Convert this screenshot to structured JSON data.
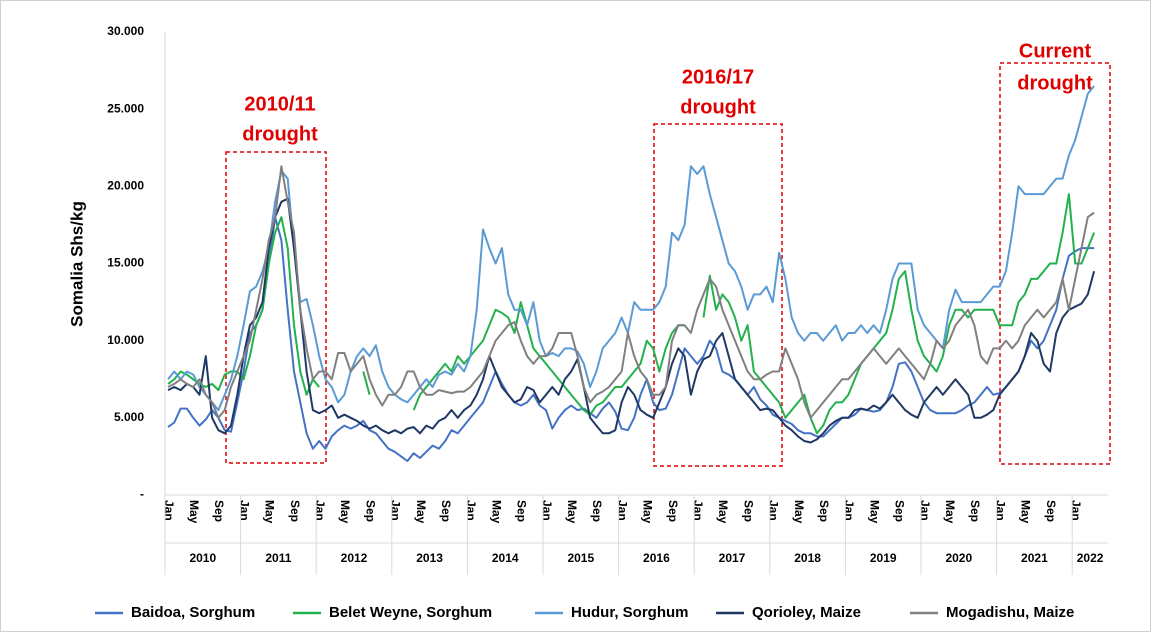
{
  "chart_data": {
    "type": "line",
    "y_label": "Somalia Shs/kg",
    "ylim": [
      0,
      30000
    ],
    "yticks": [
      {
        "value": 0,
        "label": "-"
      },
      {
        "value": 5000,
        "label": "5.000"
      },
      {
        "value": 10000,
        "label": "10.000"
      },
      {
        "value": 15000,
        "label": "15.000"
      },
      {
        "value": 20000,
        "label": "20.000"
      },
      {
        "value": 25000,
        "label": "25.000"
      },
      {
        "value": 30000,
        "label": "30.000"
      }
    ],
    "years": [
      "2010",
      "2011",
      "2012",
      "2013",
      "2014",
      "2015",
      "2016",
      "2017",
      "2018",
      "2019",
      "2020",
      "2021",
      "2022"
    ],
    "categories": [
      "Jan",
      null,
      null,
      null,
      "May",
      null,
      null,
      null,
      "Sep",
      null,
      null,
      null,
      "Jan",
      null,
      null,
      null,
      "May",
      null,
      null,
      null,
      "Sep",
      null,
      null,
      null,
      "Jan",
      null,
      null,
      null,
      "May",
      null,
      null,
      null,
      "Sep",
      null,
      null,
      null,
      "Jan",
      null,
      null,
      null,
      "May",
      null,
      null,
      null,
      "Sep",
      null,
      null,
      null,
      "Jan",
      null,
      null,
      null,
      "May",
      null,
      null,
      null,
      "Sep",
      null,
      null,
      null,
      "Jan",
      null,
      null,
      null,
      "May",
      null,
      null,
      null,
      "Sep",
      null,
      null,
      null,
      "Jan",
      null,
      null,
      null,
      "May",
      null,
      null,
      null,
      "Sep",
      null,
      null,
      null,
      "Jan",
      null,
      null,
      null,
      "May",
      null,
      null,
      null,
      "Sep",
      null,
      null,
      null,
      "Jan",
      null,
      null,
      null,
      "May",
      null,
      null,
      null,
      "Sep",
      null,
      null,
      null,
      "Jan",
      null,
      null,
      null,
      "May",
      null,
      null,
      null,
      "Sep",
      null,
      null,
      null,
      "Jan",
      null,
      null,
      null,
      "May",
      null,
      null,
      null,
      "Sep",
      null,
      null,
      null,
      "Jan",
      null,
      null,
      null,
      "May",
      null,
      null,
      null,
      "Sep",
      null,
      null,
      null,
      "Jan",
      null,
      null,
      null
    ],
    "annotations": [
      {
        "lines": [
          "2010/11",
          "drought"
        ]
      },
      {
        "lines": [
          "2016/17",
          "drought"
        ]
      },
      {
        "lines": [
          "Current",
          "drought"
        ]
      }
    ],
    "series": [
      {
        "name": "Baidoa, Sorghum",
        "color": "#4472c4",
        "values": [
          4400,
          4700,
          5600,
          5600,
          5000,
          4500,
          4900,
          5500,
          5000,
          4200,
          4100,
          6000,
          8000,
          10500,
          11000,
          12000,
          15000,
          18000,
          16500,
          12000,
          8000,
          6000,
          4000,
          3000,
          3500,
          3000,
          3800,
          4200,
          4500,
          4300,
          4500,
          4800,
          4200,
          4000,
          3500,
          3000,
          2800,
          2500,
          2200,
          2700,
          2400,
          2800,
          3200,
          3000,
          3500,
          4200,
          4000,
          4500,
          5000,
          5500,
          6000,
          7000,
          8000,
          7200,
          6500,
          6000,
          5800,
          6000,
          6500,
          5800,
          5500,
          4300,
          5000,
          5500,
          5800,
          5500,
          5600,
          5300,
          5000,
          5600,
          6000,
          5400,
          4300,
          4200,
          5000,
          6500,
          7500,
          6000,
          5500,
          5600,
          6500,
          8000,
          9500,
          9000,
          8500,
          9000,
          10000,
          9500,
          8000,
          7800,
          7500,
          7000,
          6500,
          7000,
          6200,
          5800,
          5200,
          5000,
          4800,
          4600,
          4200,
          4000,
          4000,
          3800,
          3800,
          4200,
          4600,
          5000,
          5000,
          5200,
          5600,
          5500,
          5400,
          5500,
          6000,
          7000,
          8500,
          8600,
          8000,
          7000,
          6000,
          5500,
          5300,
          5300,
          5300,
          5300,
          5500,
          5800,
          6000,
          6500,
          7000,
          6500,
          6600,
          7000,
          7500,
          8000,
          9000,
          10000,
          9500,
          10000,
          11000,
          12000,
          14000,
          15500,
          15800,
          16000,
          16000,
          16000
        ]
      },
      {
        "name": "Belet Weyne, Sorghum",
        "color": "#22b14c",
        "values": [
          7200,
          7500,
          8000,
          7800,
          7500,
          7200,
          7000,
          7200,
          6800,
          7800,
          8000,
          8000,
          7500,
          9000,
          11000,
          12000,
          15000,
          17000,
          18000,
          16000,
          11000,
          8000,
          6500,
          7500,
          7000,
          null,
          null,
          null,
          null,
          null,
          null,
          8000,
          6500,
          null,
          null,
          null,
          null,
          null,
          null,
          5500,
          6500,
          7000,
          7500,
          8000,
          8500,
          8000,
          9000,
          8500,
          9000,
          9500,
          10000,
          11000,
          12000,
          11800,
          11500,
          10500,
          12500,
          11000,
          9500,
          9000,
          8500,
          8000,
          7500,
          7000,
          6500,
          6000,
          5500,
          5200,
          5800,
          6000,
          6500,
          7000,
          7000,
          7500,
          8000,
          8500,
          10000,
          9500,
          8000,
          9500,
          10500,
          11000,
          11000,
          null,
          null,
          11500,
          14200,
          12000,
          13000,
          12500,
          11500,
          10000,
          11000,
          8000,
          7500,
          7000,
          6500,
          6000,
          5000,
          5500,
          6000,
          6500,
          5000,
          4000,
          4500,
          5500,
          6000,
          6000,
          6500,
          7500,
          8500,
          9000,
          9500,
          10000,
          10500,
          12000,
          14000,
          14500,
          12000,
          10000,
          9000,
          8500,
          8000,
          9000,
          11000,
          12000,
          12000,
          11500,
          12000,
          12000,
          12000,
          12000,
          11000,
          11000,
          11000,
          12500,
          13000,
          14000,
          14000,
          14500,
          15000,
          15000,
          17000,
          19500,
          15000,
          15000,
          16000,
          17000
        ]
      },
      {
        "name": "Hudur, Sorghum",
        "color": "#5b9bd5",
        "values": [
          7500,
          8000,
          7500,
          8000,
          7800,
          7000,
          6500,
          6000,
          5500,
          6500,
          7500,
          9000,
          11000,
          13200,
          13500,
          14500,
          16000,
          19000,
          21000,
          20500,
          16000,
          12500,
          12700,
          11000,
          9000,
          7500,
          7000,
          6000,
          6500,
          8000,
          9000,
          9500,
          9000,
          9700,
          8000,
          7000,
          6500,
          6200,
          6000,
          6500,
          7000,
          7500,
          7000,
          7800,
          8000,
          7800,
          8500,
          8000,
          9000,
          12000,
          17200,
          16000,
          15000,
          16000,
          13000,
          12000,
          12000,
          11000,
          12500,
          10000,
          9000,
          9200,
          9000,
          9500,
          9500,
          9300,
          8500,
          7000,
          8000,
          9500,
          10000,
          10500,
          11500,
          10500,
          12500,
          12000,
          12000,
          12000,
          12500,
          13500,
          17000,
          16500,
          17500,
          21300,
          20800,
          21300,
          19500,
          18000,
          16500,
          15000,
          14500,
          13500,
          12000,
          13000,
          13000,
          13500,
          12500,
          15700,
          14000,
          11500,
          10500,
          10000,
          10500,
          10500,
          10000,
          10500,
          11000,
          10000,
          10500,
          10500,
          11000,
          10500,
          11000,
          10500,
          12000,
          14000,
          15000,
          15000,
          15000,
          12000,
          11000,
          10500,
          10000,
          9500,
          12000,
          13300,
          12500,
          12500,
          12500,
          12500,
          13000,
          13500,
          13500,
          14500,
          17000,
          20000,
          19500,
          19500,
          19500,
          19500,
          20000,
          20500,
          20500,
          22000,
          23000,
          24500,
          26000,
          26500
        ]
      },
      {
        "name": "Qorioley, Maize",
        "color": "#203864",
        "values": [
          6800,
          7000,
          6800,
          7200,
          7000,
          6500,
          9000,
          5000,
          4200,
          4000,
          4500,
          6500,
          9000,
          11000,
          11500,
          12500,
          16000,
          18000,
          19000,
          19200,
          16000,
          12000,
          8000,
          5500,
          5300,
          5500,
          5800,
          5000,
          5200,
          5000,
          4800,
          4500,
          4300,
          4500,
          4200,
          4000,
          4200,
          4000,
          4300,
          4400,
          4000,
          4500,
          4300,
          4800,
          5000,
          5500,
          5000,
          5500,
          5800,
          6500,
          7500,
          9000,
          8000,
          7000,
          6500,
          6000,
          6200,
          7000,
          6800,
          6000,
          6500,
          7000,
          6500,
          7500,
          8000,
          8800,
          7000,
          5000,
          4500,
          4000,
          4000,
          4200,
          6000,
          7000,
          6500,
          5500,
          5200,
          5000,
          6000,
          7000,
          8500,
          9500,
          9000,
          6500,
          8000,
          8800,
          9000,
          10000,
          10500,
          9000,
          7500,
          7000,
          6500,
          6000,
          5500,
          5600,
          5500,
          5000,
          4500,
          4200,
          3800,
          3500,
          3400,
          3600,
          4000,
          4500,
          4800,
          5000,
          5000,
          5500,
          5600,
          5500,
          5800,
          5600,
          6000,
          6500,
          6000,
          5500,
          5200,
          5000,
          6000,
          6500,
          7000,
          6500,
          7000,
          7500,
          7000,
          6500,
          5000,
          5000,
          5200,
          5500,
          6500,
          7000,
          7500,
          8000,
          9000,
          10500,
          10000,
          8500,
          8000,
          10500,
          11500,
          12000,
          12200,
          12400,
          13000,
          14500
        ]
      },
      {
        "name": "Mogadishu, Maize",
        "color": "#808080",
        "values": [
          7000,
          7200,
          7500,
          7200,
          7000,
          7500,
          6500,
          6000,
          5000,
          5500,
          7000,
          8000,
          9000,
          10000,
          12000,
          14000,
          16500,
          18000,
          21300,
          19000,
          17000,
          12000,
          9500,
          7500,
          8000,
          8000,
          7500,
          9200,
          9200,
          8000,
          8500,
          9000,
          7500,
          6500,
          5800,
          6500,
          6500,
          7000,
          8000,
          8000,
          7000,
          6500,
          6500,
          6800,
          6700,
          6600,
          6700,
          6700,
          7000,
          7500,
          8000,
          9000,
          10000,
          10500,
          11000,
          11200,
          10000,
          9000,
          8500,
          9000,
          9000,
          9500,
          10500,
          10500,
          10500,
          9000,
          7000,
          6000,
          6500,
          6700,
          7000,
          7500,
          8000,
          10500,
          9000,
          8000,
          7500,
          6500,
          6500,
          7000,
          10000,
          11000,
          11000,
          10500,
          12000,
          13000,
          14000,
          13500,
          12000,
          11000,
          10000,
          9000,
          8000,
          7500,
          7500,
          7800,
          8000,
          8000,
          9500,
          8500,
          7500,
          6000,
          5000,
          5500,
          6000,
          6500,
          7000,
          7500,
          7500,
          8000,
          8500,
          9000,
          9500,
          9000,
          8500,
          9000,
          9500,
          9000,
          8500,
          8000,
          7500,
          8500,
          10000,
          9500,
          10000,
          11000,
          11500,
          12000,
          11000,
          9000,
          8500,
          9500,
          9500,
          10000,
          9500,
          10000,
          11000,
          11500,
          12000,
          11500,
          12000,
          12500,
          14000,
          12000,
          14000,
          16000,
          18000,
          18300
        ]
      }
    ]
  }
}
